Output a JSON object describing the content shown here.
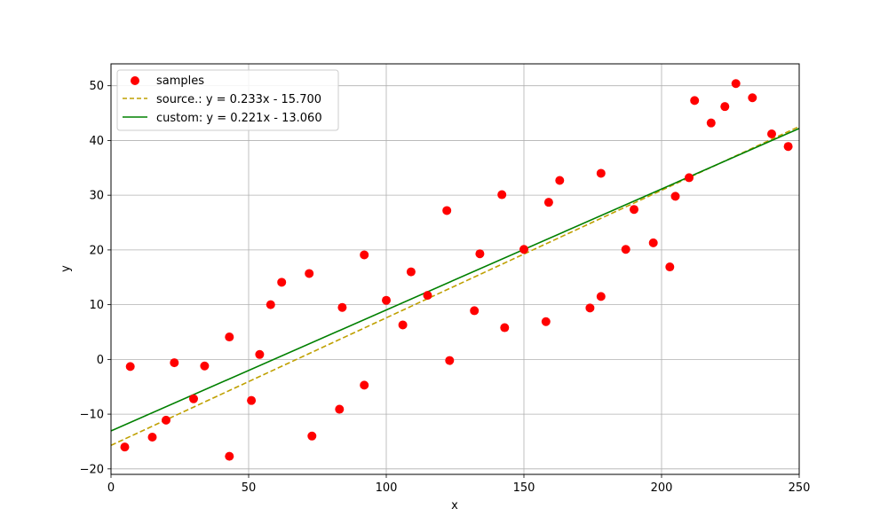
{
  "chart_data": {
    "type": "scatter",
    "title": "",
    "xlabel": "x",
    "ylabel": "y",
    "xlim": [
      0,
      250
    ],
    "ylim": [
      -21,
      54
    ],
    "xticks": [
      0,
      50,
      100,
      150,
      200,
      250
    ],
    "yticks": [
      -20,
      -10,
      0,
      10,
      20,
      30,
      40,
      50
    ],
    "xtick_labels": [
      "0",
      "50",
      "100",
      "150",
      "200",
      "250"
    ],
    "ytick_labels": [
      "−20",
      "−10",
      "0",
      "10",
      "20",
      "30",
      "40",
      "50"
    ],
    "grid": true,
    "legend_position": "top-left",
    "series": [
      {
        "name": "samples",
        "kind": "scatter",
        "color": "#ff0000",
        "x": [
          5,
          7,
          15,
          20,
          23,
          30,
          34,
          43,
          43,
          51,
          54,
          58,
          62,
          72,
          73,
          83,
          84,
          92,
          92,
          100,
          106,
          109,
          115,
          122,
          123,
          132,
          134,
          142,
          143,
          150,
          158,
          159,
          163,
          174,
          178,
          178,
          187,
          190,
          197,
          203,
          205,
          210,
          212,
          218,
          223,
          227,
          233,
          240,
          246
        ],
        "y": [
          -16,
          -1.3,
          -14.2,
          -11.1,
          -0.6,
          -7.2,
          -1.2,
          4.1,
          -17.7,
          -7.5,
          0.9,
          10.0,
          14.1,
          15.7,
          -14.0,
          -9.1,
          9.5,
          19.1,
          -4.7,
          10.8,
          6.3,
          16.0,
          11.7,
          27.2,
          -0.2,
          8.9,
          19.3,
          30.1,
          5.8,
          20.1,
          6.9,
          28.7,
          32.7,
          9.4,
          34.0,
          11.5,
          20.1,
          27.4,
          21.3,
          16.9,
          29.8,
          33.2,
          47.3,
          43.2,
          46.2,
          50.4,
          47.8,
          41.2,
          38.9
        ]
      },
      {
        "name": "source.: y = 0.233x - 15.700",
        "kind": "line",
        "style": "dashed",
        "color": "#bfa000",
        "slope": 0.233,
        "intercept": -15.7
      },
      {
        "name": "custom: y = 0.221x - 13.060",
        "kind": "line",
        "style": "solid",
        "color": "#008000",
        "slope": 0.221,
        "intercept": -13.06
      }
    ]
  }
}
